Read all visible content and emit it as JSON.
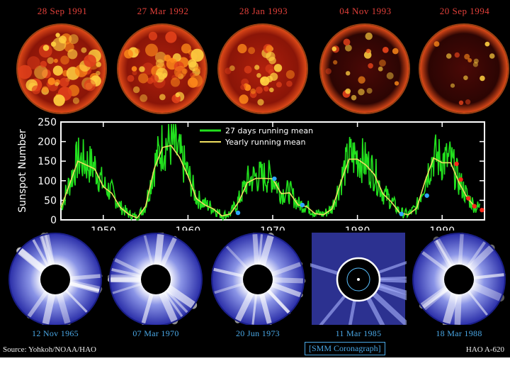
{
  "top_row": {
    "dates": [
      "28 Sep 1991",
      "27 Mar 1992",
      "28 Jan 1993",
      "04 Nov 1993",
      "20 Sep 1994"
    ],
    "activity": [
      1.0,
      0.9,
      0.55,
      0.35,
      0.15
    ]
  },
  "bottom_row": {
    "dates": [
      "12 Nov 1965",
      "07 Mar 1970",
      "20 Jun 1973",
      "11 Mar 1985",
      "18 Mar 1988"
    ],
    "smm_label": "[SMM Coronagraph]"
  },
  "footer": {
    "source": "Source: Yohkoh/NOAA/HAO",
    "ref": "HAO A-620"
  },
  "colors": {
    "monthly": "#22e01e",
    "yearly": "#f0e060",
    "frame": "#ffffff",
    "blue_marker": "#2fa8ff",
    "red_marker": "#ff2a1a"
  },
  "chart_data": {
    "type": "line",
    "ylabel": "Sunspot Number",
    "xlabel": "",
    "xlim": [
      1945,
      1995
    ],
    "ylim": [
      0,
      250
    ],
    "x_ticks": [
      1950,
      1960,
      1970,
      1980,
      1990
    ],
    "y_ticks": [
      0,
      50,
      100,
      150,
      200,
      250
    ],
    "legend": {
      "position": "top-right",
      "entries": [
        "27 days running mean",
        "Yearly running mean"
      ]
    },
    "series": [
      {
        "name": "Yearly running mean",
        "x": [
          1945,
          1946,
          1947,
          1948,
          1949,
          1950,
          1951,
          1952,
          1953,
          1954,
          1955,
          1956,
          1957,
          1958,
          1959,
          1960,
          1961,
          1962,
          1963,
          1964,
          1965,
          1966,
          1967,
          1968,
          1969,
          1970,
          1971,
          1972,
          1973,
          1974,
          1975,
          1976,
          1977,
          1978,
          1979,
          1980,
          1981,
          1982,
          1983,
          1984,
          1985,
          1986,
          1987,
          1988,
          1989,
          1990,
          1991,
          1992,
          1993,
          1994
        ],
        "y": [
          30,
          90,
          150,
          140,
          130,
          85,
          68,
          32,
          14,
          5,
          35,
          130,
          185,
          190,
          160,
          112,
          54,
          38,
          28,
          10,
          15,
          47,
          95,
          106,
          106,
          105,
          67,
          69,
          38,
          34,
          16,
          13,
          28,
          93,
          155,
          155,
          140,
          116,
          67,
          46,
          18,
          13,
          30,
          100,
          158,
          146,
          146,
          95,
          55,
          30
        ]
      }
    ],
    "annotations": {
      "blue_markers": [
        {
          "x": 1965.9,
          "y": 18
        },
        {
          "x": 1970.2,
          "y": 105
        },
        {
          "x": 1973.5,
          "y": 38
        },
        {
          "x": 1985.2,
          "y": 15
        },
        {
          "x": 1988.2,
          "y": 62
        }
      ],
      "red_markers": [
        {
          "x": 1991.7,
          "y": 143
        },
        {
          "x": 1992.2,
          "y": 103
        },
        {
          "x": 1993.1,
          "y": 55
        },
        {
          "x": 1993.8,
          "y": 35
        },
        {
          "x": 1994.7,
          "y": 25
        }
      ]
    }
  }
}
